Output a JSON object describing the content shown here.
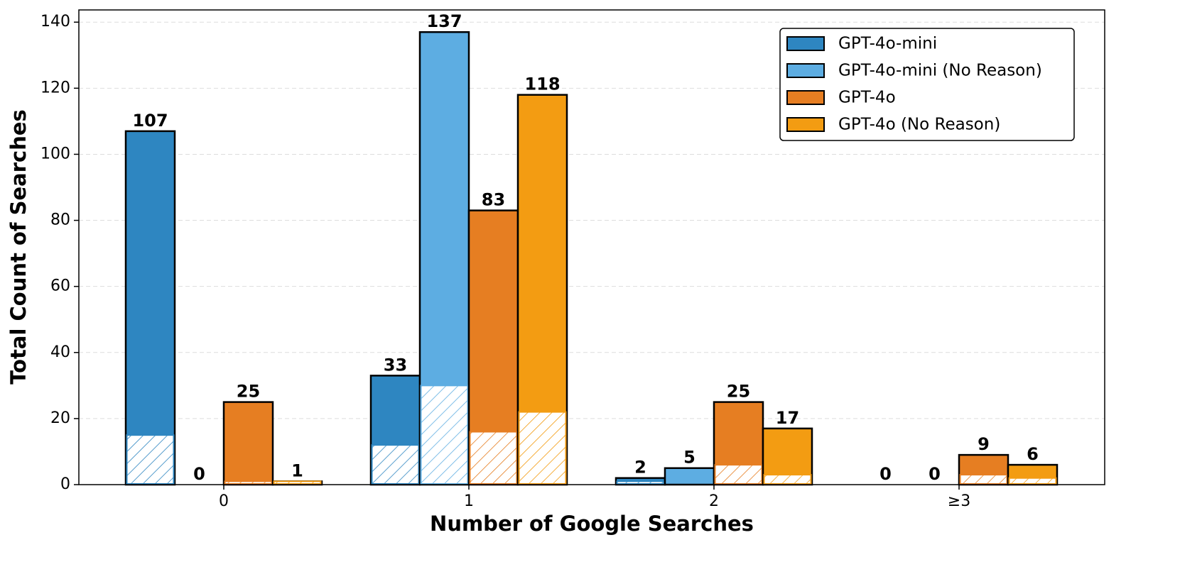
{
  "chart_data": {
    "type": "bar",
    "x_label": "Number of Google Searches",
    "y_label": "Total Count of Searches",
    "categories": [
      "0",
      "1",
      "2",
      "≥3"
    ],
    "series": [
      {
        "name": "GPT-4o-mini",
        "color": "#2e86c1",
        "values": [
          107,
          33,
          2,
          0
        ],
        "hatch_values": [
          15,
          12,
          1,
          0
        ]
      },
      {
        "name": "GPT-4o-mini (No Reason)",
        "color": "#5dade2",
        "values": [
          0,
          137,
          5,
          0
        ],
        "hatch_values": [
          0,
          30,
          0,
          0
        ]
      },
      {
        "name": "GPT-4o",
        "color": "#e67e22",
        "values": [
          25,
          83,
          25,
          9
        ],
        "hatch_values": [
          1,
          16,
          6,
          3
        ]
      },
      {
        "name": "GPT-4o (No Reason)",
        "color": "#f39c12",
        "values": [
          1,
          118,
          17,
          6
        ],
        "hatch_values": [
          1,
          22,
          3,
          2
        ]
      }
    ],
    "ylim": [
      0,
      143.7
    ],
    "yticks": [
      0,
      20,
      40,
      60,
      80,
      100,
      120,
      140
    ],
    "grid": true,
    "legend": "upper right"
  }
}
